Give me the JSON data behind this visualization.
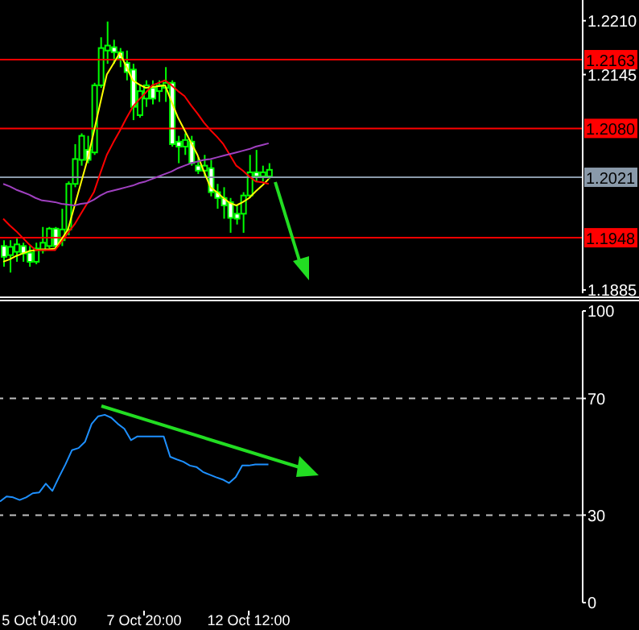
{
  "chart_data": [
    {
      "type": "candlestick",
      "categories": [
        null,
        null,
        null,
        null,
        null,
        null,
        null,
        null,
        null,
        null,
        null,
        null,
        null,
        null,
        null,
        null,
        null,
        null,
        null,
        null,
        null,
        null,
        null,
        null,
        null,
        null,
        null,
        null,
        null,
        null,
        null,
        null,
        null,
        null,
        null,
        null,
        null,
        null,
        null,
        null,
        null,
        null,
        null,
        null,
        null,
        null,
        null,
        null,
        null,
        null,
        null,
        null,
        null,
        null,
        null,
        null,
        null,
        null,
        null,
        null,
        null,
        null,
        null,
        null,
        null,
        null,
        null,
        null,
        null,
        null,
        null,
        null,
        null,
        null,
        null,
        null,
        null,
        null,
        null,
        null,
        null,
        null,
        null,
        null,
        null,
        null,
        null,
        null,
        null,
        null
      ],
      "ylim": [
        1.1881,
        1.2235
      ],
      "yticks": [
        {
          "value": 1.221,
          "label": "1.2210"
        },
        {
          "value": 1.2145,
          "label": "1.2145"
        },
        {
          "value": 1.1885,
          "label": "1.1885"
        }
      ],
      "tick_labels": "y",
      "grid": false,
      "legend": false,
      "marker": "none",
      "ref_lines": [
        {
          "axis": "y",
          "value": 1.2163,
          "label": "1.2163",
          "color": "#ff0000"
        },
        {
          "axis": "y",
          "value": 1.208,
          "label": "1.2080",
          "color": "#ff0000"
        },
        {
          "axis": "y",
          "value": 1.2021,
          "label": "1.2021",
          "color": "#8a9aaa"
        },
        {
          "axis": "y",
          "value": 1.1948,
          "label": "1.1948",
          "color": "#ff0000"
        }
      ],
      "series": [
        {
          "color": "#00ff00",
          "ohlc": [
            [
              1.1938,
              1.1945,
              1.1913,
              1.1925
            ],
            [
              1.1927,
              1.1945,
              1.1906,
              1.1937
            ],
            [
              1.1931,
              1.1947,
              1.1919,
              1.194
            ],
            [
              1.1938,
              1.1942,
              1.1919,
              1.1929
            ],
            [
              1.193,
              1.1938,
              1.1913,
              1.1919
            ],
            [
              1.1919,
              1.1942,
              1.1916,
              1.1935
            ],
            [
              1.1933,
              1.1961,
              1.1929,
              1.1942
            ],
            [
              1.1938,
              1.1961,
              1.1935,
              1.1959
            ],
            [
              1.1959,
              1.1961,
              1.1935,
              1.1938
            ],
            [
              1.1945,
              1.1983,
              1.1938,
              1.1958
            ],
            [
              1.1958,
              1.2016,
              1.1951,
              1.2013
            ],
            [
              1.2013,
              1.2061,
              1.2009,
              1.2043
            ],
            [
              1.2042,
              1.2074,
              1.2035,
              1.2071
            ],
            [
              1.2054,
              1.2071,
              1.2038,
              1.2042
            ],
            [
              1.2051,
              1.2135,
              1.2048,
              1.2132
            ],
            [
              1.2132,
              1.219,
              1.2129,
              1.2177
            ],
            [
              1.2174,
              1.2209,
              1.2158,
              1.218
            ],
            [
              1.2178,
              1.2187,
              1.2158,
              1.2172
            ],
            [
              1.2172,
              1.2177,
              1.2154,
              1.2164
            ],
            [
              1.2159,
              1.2174,
              1.2138,
              1.2148
            ],
            [
              1.2151,
              1.2158,
              1.209,
              1.2106
            ],
            [
              1.2096,
              1.2132,
              1.2093,
              1.2125
            ],
            [
              1.2116,
              1.2138,
              1.2106,
              1.2132
            ],
            [
              1.2129,
              1.2138,
              1.2109,
              1.2116
            ],
            [
              1.2125,
              1.2138,
              1.2112,
              1.2132
            ],
            [
              1.2129,
              1.2154,
              1.2112,
              1.2135
            ],
            [
              1.2135,
              1.2138,
              1.2058,
              1.2061
            ],
            [
              1.2064,
              1.2071,
              1.2038,
              1.2058
            ],
            [
              1.2058,
              1.2074,
              1.2048,
              1.2066
            ],
            [
              1.2064,
              1.2071,
              1.2035,
              1.2038
            ],
            [
              1.2035,
              1.2045,
              1.2025,
              1.2029
            ],
            [
              1.2029,
              1.2048,
              1.2022,
              1.2035
            ],
            [
              1.2032,
              1.2042,
              1.1998,
              1.2003
            ],
            [
              1.2003,
              1.2013,
              1.1983,
              1.1996
            ],
            [
              1.1996,
              1.2009,
              1.1971,
              1.1987
            ],
            [
              1.1991,
              1.1996,
              1.1954,
              1.1972
            ],
            [
              1.1977,
              1.1987,
              1.1964,
              1.1971
            ],
            [
              1.1977,
              1.2003,
              1.1954,
              1.1999
            ],
            [
              1.1999,
              1.2048,
              1.1996,
              1.2027
            ],
            [
              1.2027,
              1.2054,
              1.2016,
              1.2022
            ],
            [
              1.2022,
              1.2035,
              1.2016,
              1.2027
            ],
            [
              1.2022,
              1.2038,
              1.2019,
              1.203
            ],
            null,
            null,
            null,
            null,
            null,
            null,
            null,
            null,
            null,
            null,
            null,
            null,
            null,
            null,
            null,
            null,
            null,
            null,
            null,
            null,
            null,
            null,
            null,
            null,
            null,
            null,
            null,
            null,
            null,
            null,
            null,
            null,
            null,
            null,
            null,
            null,
            null,
            null,
            null,
            null,
            null,
            null,
            null,
            null,
            null,
            null,
            null,
            null
          ]
        },
        {
          "type": "line",
          "color": "#ffff00",
          "values": [
            1.1919,
            1.1922,
            1.1926,
            1.1929,
            1.1932,
            1.1933,
            1.1934,
            1.1934,
            1.1935,
            1.1946,
            1.1958,
            1.1986,
            1.2014,
            1.2042,
            1.2076,
            1.2111,
            1.2145,
            1.2158,
            1.2171,
            1.2155,
            1.2138,
            1.2133,
            1.2129,
            1.213,
            1.2131,
            1.2132,
            1.2112,
            1.2093,
            1.2078,
            1.2063,
            1.2048,
            1.2028,
            1.2009,
            1.2003,
            1.1996,
            1.199,
            1.1987,
            1.1991,
            1.1996,
            1.2004,
            1.2011,
            1.2019,
            null,
            null,
            null,
            null,
            null,
            null,
            null,
            null,
            null,
            null,
            null,
            null,
            null,
            null,
            null,
            null,
            null,
            null,
            null,
            null,
            null,
            null,
            null,
            null,
            null,
            null,
            null,
            null,
            null,
            null,
            null,
            null,
            null,
            null,
            null,
            null,
            null,
            null,
            null,
            null,
            null,
            null,
            null,
            null,
            null,
            null,
            null,
            null
          ]
        },
        {
          "type": "line",
          "color": "#ff0000",
          "values": [
            1.1971,
            1.1963,
            1.1956,
            1.1948,
            1.194,
            1.1933,
            1.1933,
            1.1933,
            1.1933,
            1.1943,
            1.1954,
            1.1964,
            1.1977,
            1.199,
            1.2003,
            1.2026,
            1.2048,
            1.2063,
            1.2077,
            1.2092,
            1.2106,
            1.2115,
            1.2123,
            1.2132,
            1.2135,
            1.2138,
            1.2132,
            1.2125,
            1.2119,
            1.2108,
            1.2098,
            1.2087,
            1.2078,
            1.207,
            1.2061,
            1.2048,
            1.2035,
            1.2029,
            1.2022,
            1.2016,
            1.2015,
            1.2013,
            null,
            null,
            null,
            null,
            null,
            null,
            null,
            null,
            null,
            null,
            null,
            null,
            null,
            null,
            null,
            null,
            null,
            null,
            null,
            null,
            null,
            null,
            null,
            null,
            null,
            null,
            null,
            null,
            null,
            null,
            null,
            null,
            null,
            null,
            null,
            null,
            null,
            null,
            null,
            null,
            null,
            null,
            null,
            null,
            null,
            null,
            null,
            null
          ]
        },
        {
          "type": "line",
          "color": "#a040c0",
          "values": [
            1.2013,
            1.201,
            1.2006,
            1.2003,
            1.2,
            1.1996,
            1.1993,
            1.1992,
            1.1991,
            1.1989,
            1.1988,
            1.1987,
            1.1989,
            1.199,
            1.1994,
            1.1999,
            1.2003,
            1.2005,
            1.2007,
            1.2009,
            1.2011,
            1.2014,
            1.2016,
            1.2019,
            1.2022,
            1.2025,
            1.2028,
            1.2032,
            1.2035,
            1.2038,
            1.204,
            1.2042,
            1.2043,
            1.2045,
            1.2047,
            1.2049,
            1.2051,
            1.2053,
            1.2055,
            1.2058,
            1.206,
            1.2062,
            null,
            null,
            null,
            null,
            null,
            null,
            null,
            null,
            null,
            null,
            null,
            null,
            null,
            null,
            null,
            null,
            null,
            null,
            null,
            null,
            null,
            null,
            null,
            null,
            null,
            null,
            null,
            null,
            null,
            null,
            null,
            null,
            null,
            null,
            null,
            null,
            null,
            null,
            null,
            null,
            null,
            null,
            null,
            null,
            null,
            null,
            null,
            null
          ]
        }
      ]
    },
    {
      "type": "line",
      "categories": [
        null,
        null,
        null,
        null,
        null,
        null,
        "5 Oct 04:00",
        null,
        null,
        null,
        null,
        null,
        null,
        null,
        null,
        null,
        null,
        null,
        null,
        null,
        null,
        null,
        "7 Oct 20:00",
        null,
        null,
        null,
        null,
        null,
        null,
        null,
        null,
        null,
        null,
        null,
        null,
        null,
        null,
        null,
        "12 Oct 12:00",
        null,
        null,
        null,
        null,
        null,
        null,
        null,
        null,
        null,
        null,
        null,
        null,
        null,
        null,
        null,
        null,
        null,
        null,
        null,
        null,
        null,
        null,
        null,
        null,
        null,
        null,
        null,
        null,
        null,
        null,
        null,
        null,
        null,
        null,
        null,
        null,
        null,
        null,
        null,
        null,
        null,
        null,
        null,
        null,
        null,
        null,
        null,
        null,
        null,
        null,
        null
      ],
      "ylim": [
        0,
        100
      ],
      "yticks": [
        0,
        30,
        70,
        100
      ],
      "grid": false,
      "legend": false,
      "marker": "none",
      "ref_lines": [
        {
          "axis": "y",
          "value": 70,
          "color": "#c0c0c0",
          "line_style": "dashed"
        },
        {
          "axis": "y",
          "value": 30,
          "color": "#c0c0c0",
          "line_style": "dashed"
        }
      ],
      "series": [
        {
          "color": "#1e90ff",
          "values": [
            34.7,
            36.4,
            36.1,
            35.2,
            36.1,
            37.5,
            37.8,
            40.8,
            38.3,
            43,
            47.4,
            52.3,
            53,
            55.2,
            61.3,
            63.9,
            64.4,
            63.4,
            61.3,
            59.6,
            55.7,
            57,
            57,
            57,
            57,
            57,
            50,
            49.1,
            48.3,
            47,
            46.5,
            44.8,
            43.9,
            43,
            42.2,
            41,
            43,
            47,
            47,
            47.4,
            47.4,
            47.4,
            null,
            null,
            null,
            null,
            null,
            null,
            null,
            null,
            null,
            null,
            null,
            null,
            null,
            null,
            null,
            null,
            null,
            null,
            null,
            null,
            null,
            null,
            null,
            null,
            null,
            null,
            null,
            null,
            null,
            null,
            null,
            null,
            null,
            null,
            null,
            null,
            null,
            null,
            null,
            null,
            null,
            null,
            null,
            null,
            null,
            null,
            null,
            null
          ]
        }
      ]
    }
  ]
}
